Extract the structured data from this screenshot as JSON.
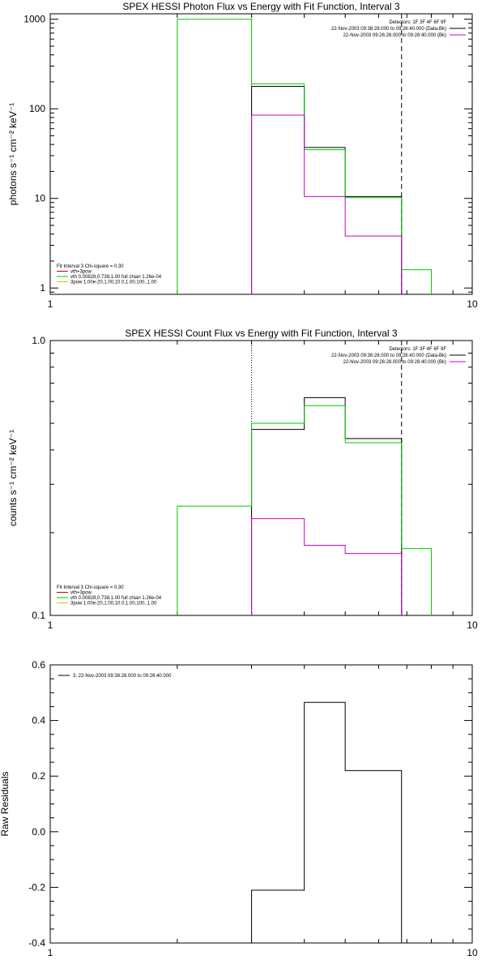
{
  "chart_data": [
    {
      "type": "step-histogram",
      "title": "SPEX HESSI Photon Flux vs Energy with Fit Function, Interval 3",
      "xlabel": "",
      "ylabel": "photons s⁻¹ cm⁻² keV⁻¹",
      "xscale": "log",
      "yscale": "log",
      "xlim": [
        1,
        10
      ],
      "ylim": [
        0.85,
        1150
      ],
      "x_tick_labels": [
        "1",
        "10"
      ],
      "y_tick_labels": [
        "1",
        "10",
        "100",
        "1000"
      ],
      "y_ticks": [
        1,
        10,
        100,
        1000
      ],
      "vlines": [
        {
          "x": 3.0,
          "style": "dotted"
        },
        {
          "x": 6.8,
          "style": "dashed"
        }
      ],
      "series": [
        {
          "color": "#000000",
          "bins": [
            [
              3.0,
              4.0,
              178
            ],
            [
              4.0,
              5.0,
              37
            ],
            [
              5.0,
              6.8,
              10.5
            ]
          ]
        },
        {
          "color": "#00cc00",
          "bins": [
            [
              2.0,
              3.0,
              1000
            ],
            [
              3.0,
              4.0,
              190
            ],
            [
              4.0,
              5.0,
              35
            ],
            [
              5.0,
              6.8,
              10.2
            ],
            [
              6.8,
              8.0,
              1.6
            ]
          ]
        },
        {
          "color": "#cc00cc",
          "bins": [
            [
              3.0,
              4.0,
              85
            ],
            [
              4.0,
              5.0,
              10.5
            ],
            [
              5.0,
              6.8,
              3.8
            ]
          ]
        }
      ],
      "legend_topright": [
        {
          "text": "Detectors: 1F 3F 4F 6F 9F",
          "color": ""
        },
        {
          "text": "22-Nov-2003 09:38:28.000 to 09:26:40.000 (Data-Bk)",
          "color": "#000000"
        },
        {
          "text": "22-Nov-2003 09:26:28.000 to 09:28:40.000 (Bk)",
          "color": "#cc00cc"
        }
      ],
      "legend_bottomleft": [
        {
          "text": "Fit Interval 3   Chi-square = 0.30",
          "color": ""
        },
        {
          "text": "vth+3pow",
          "color": "#cc0000"
        },
        {
          "text": "vth 0.00828,0.738,1.00  full chian 1.26e-04",
          "color": "#00cc00"
        },
        {
          "text": "3pow 1.00e-20,1.00,10.0,1.00,100.,1.00",
          "color": "#cccc00"
        }
      ]
    },
    {
      "type": "step-histogram",
      "title": "SPEX HESSI Count Flux vs Energy with Fit Function, Interval 3",
      "xlabel": "",
      "ylabel": "counts s⁻¹ cm⁻² keV⁻¹",
      "xscale": "log",
      "yscale": "log",
      "xlim": [
        1,
        10
      ],
      "ylim": [
        0.1,
        1.0
      ],
      "x_tick_labels": [
        "1",
        "10"
      ],
      "y_tick_labels": [
        "0.1",
        "1.0"
      ],
      "y_ticks": [
        0.1,
        1.0
      ],
      "vlines": [
        {
          "x": 3.0,
          "style": "dotted"
        },
        {
          "x": 6.8,
          "style": "dashed"
        }
      ],
      "series": [
        {
          "color": "#000000",
          "bins": [
            [
              3.0,
              4.0,
              0.475
            ],
            [
              4.0,
              5.0,
              0.62
            ],
            [
              5.0,
              6.8,
              0.44
            ]
          ]
        },
        {
          "color": "#00cc00",
          "bins": [
            [
              2.0,
              3.0,
              0.25
            ],
            [
              3.0,
              4.0,
              0.5
            ],
            [
              4.0,
              5.0,
              0.58
            ],
            [
              5.0,
              6.8,
              0.425
            ],
            [
              6.8,
              8.0,
              0.175
            ]
          ]
        },
        {
          "color": "#cc00cc",
          "bins": [
            [
              3.0,
              4.0,
              0.225
            ],
            [
              4.0,
              5.0,
              0.18
            ],
            [
              5.0,
              6.8,
              0.168
            ]
          ]
        }
      ],
      "legend_topright": [
        {
          "text": "Detectors: 1F 3F 4F 6F 9F",
          "color": ""
        },
        {
          "text": "22-Nov-2003 09:38:28.000 to 09:26:40.000 (Data-Bk)",
          "color": "#000000"
        },
        {
          "text": "22-Nov-2003 09:26:28.000 to 09:28:40.000 (Bk)",
          "color": "#cc00cc"
        }
      ],
      "legend_bottomleft": [
        {
          "text": "Fit Interval 3   Chi-square = 0.30",
          "color": ""
        },
        {
          "text": "vth+3pow",
          "color": "#cc0000"
        },
        {
          "text": "vth 0.00828,0.738,1.00  full chian 1.26e-04",
          "color": "#00cc00"
        },
        {
          "text": "3pow 1.00e-20,1.00,10.0,1.00,100.,1.00",
          "color": "#cccc00"
        }
      ]
    },
    {
      "type": "step-histogram",
      "title": "",
      "xlabel": "",
      "ylabel": "Raw Residuals",
      "xscale": "log",
      "yscale": "linear",
      "xlim": [
        1,
        10
      ],
      "ylim": [
        -0.4,
        0.6
      ],
      "x_tick_labels": [
        "1",
        "10"
      ],
      "y_tick_labels": [
        "-0.4",
        "-0.2",
        "0.0",
        "0.2",
        "0.4",
        "0.6"
      ],
      "y_ticks": [
        -0.4,
        -0.2,
        0.0,
        0.2,
        0.4,
        0.6
      ],
      "vlines": [],
      "series": [
        {
          "color": "#000000",
          "bins": [
            [
              3.0,
              4.0,
              -0.21
            ],
            [
              4.0,
              5.0,
              0.465
            ],
            [
              5.0,
              6.8,
              0.22
            ]
          ]
        }
      ],
      "legend_topright": [],
      "legend_topleft": [
        {
          "text": "3, 22-Nov-2003 09:38:28.000 to 09:26:40.000",
          "color": "#000000"
        }
      ],
      "legend_bottomleft": []
    }
  ]
}
